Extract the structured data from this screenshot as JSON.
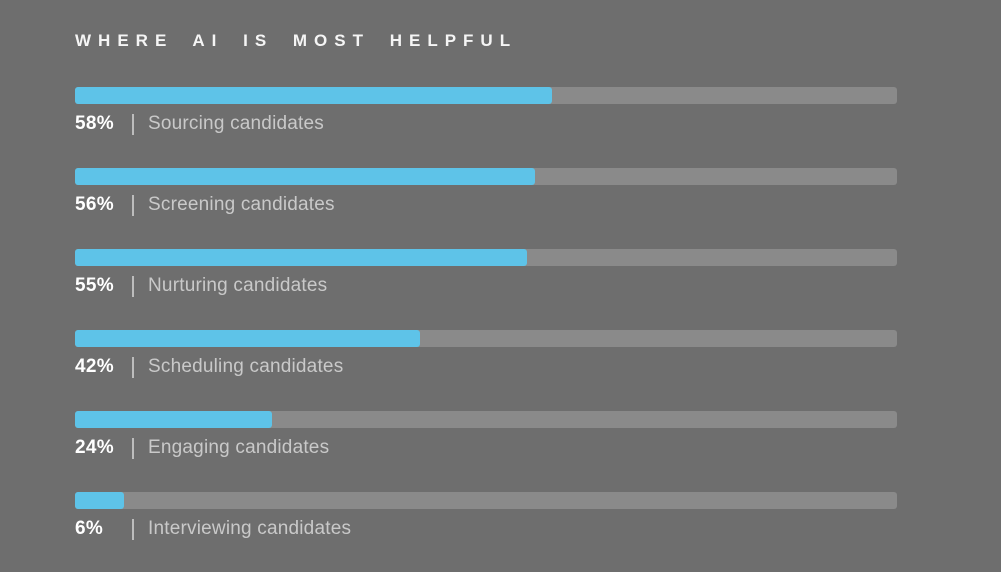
{
  "title": "WHERE AI IS MOST HELPFUL",
  "colors": {
    "background": "#6e6e6e",
    "bar_track": "#8a8a8a",
    "bar_fill": "#5ec3e8",
    "percent_text": "#ffffff",
    "label_text": "#c9c9c9",
    "separator": "#bdbdbd",
    "title_text": "#f5f5f5"
  },
  "chart_data": {
    "type": "bar",
    "orientation": "horizontal",
    "title": "WHERE AI IS MOST HELPFUL",
    "categories": [
      "Sourcing candidates",
      "Screening candidates",
      "Nurturing candidates",
      "Scheduling candidates",
      "Engaging candidates",
      "Interviewing candidates"
    ],
    "values": [
      58,
      56,
      55,
      42,
      24,
      6
    ],
    "unit": "%",
    "xlim": [
      0,
      100
    ],
    "grid": false,
    "legend": false,
    "items": [
      {
        "value": 58,
        "percent_label": "58%",
        "label": "Sourcing candidates"
      },
      {
        "value": 56,
        "percent_label": "56%",
        "label": "Screening candidates"
      },
      {
        "value": 55,
        "percent_label": "55%",
        "label": "Nurturing candidates"
      },
      {
        "value": 42,
        "percent_label": "42%",
        "label": "Scheduling candidates"
      },
      {
        "value": 24,
        "percent_label": "24%",
        "label": "Engaging candidates"
      },
      {
        "value": 6,
        "percent_label": "6%",
        "label": "Interviewing candidates"
      }
    ]
  }
}
